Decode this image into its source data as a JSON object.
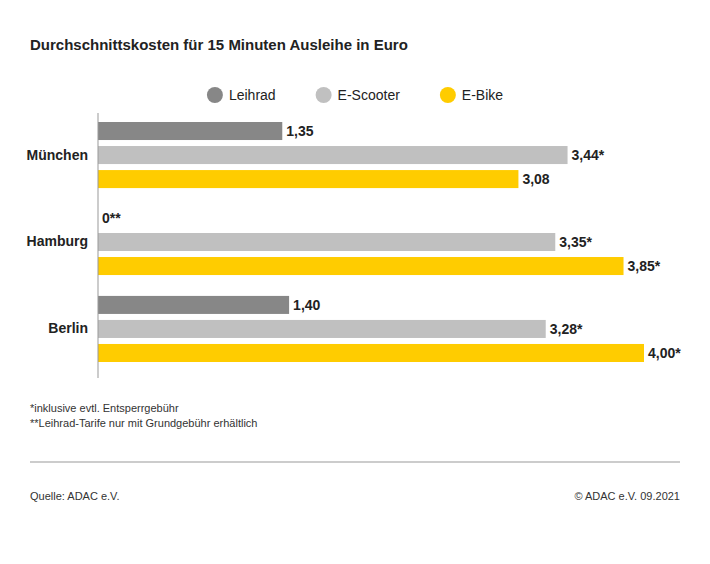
{
  "chart_data": {
    "type": "bar",
    "orientation": "horizontal",
    "title": "Durchschnittskosten für 15 Minuten Ausleihe in Euro",
    "categories": [
      "München",
      "Hamburg",
      "Berlin"
    ],
    "series": [
      {
        "name": "Leihrad",
        "color": "#878787",
        "values": [
          1.35,
          0,
          1.4
        ],
        "value_labels": [
          "1,35",
          "0**",
          "1,40"
        ]
      },
      {
        "name": "E-Scooter",
        "color": "#c0c0c0",
        "values": [
          3.44,
          3.35,
          3.28
        ],
        "value_labels": [
          "3,44*",
          "3,35*",
          "3,28*"
        ]
      },
      {
        "name": "E-Bike",
        "color": "#ffcc00",
        "values": [
          3.08,
          3.85,
          4.0
        ],
        "value_labels": [
          "3,08",
          "3,85*",
          "4,00*"
        ]
      }
    ],
    "xlim": [
      0,
      4
    ],
    "data_labels": true,
    "tick_labels": "y",
    "legend": "top",
    "grid": false,
    "annotations": [
      "*inklusive evtl. Entsperrgebühr",
      "**Leihrad-Tarife nur mit Grundgebühr erhältlich",
      "Quelle: ADAC e.V.",
      "© ADAC e.V. 09.2021"
    ]
  }
}
